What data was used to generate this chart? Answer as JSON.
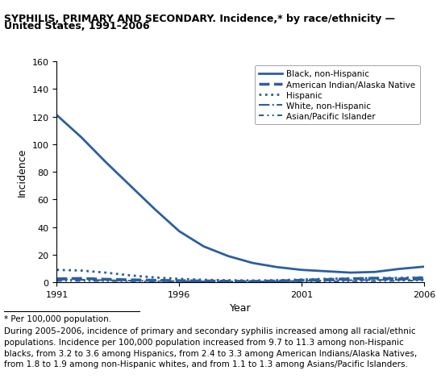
{
  "title_line1": "SYPHILIS, PRIMARY AND SECONDARY. Incidence,* by race/ethnicity —",
  "title_line2": "United States, 1991–2006",
  "xlabel": "Year",
  "ylabel": "Incidence",
  "ylim": [
    0,
    160
  ],
  "yticks": [
    0,
    20,
    40,
    60,
    80,
    100,
    120,
    140,
    160
  ],
  "xticks": [
    1991,
    1996,
    2001,
    2006
  ],
  "footnote_star": "* Per 100,000 population.",
  "footnote_body": "During 2005–2006, incidence of primary and secondary syphilis increased among all racial/ethnic\npopulations. Incidence per 100,000 population increased from 9.7 to 11.3 among non-Hispanic\nblacks, from 3.2 to 3.6 among Hispanics, from 2.4 to 3.3 among American Indians/Alaska Natives,\nfrom 1.8 to 1.9 among non-Hispanic whites, and from 1.1 to 1.3 among Asians/Pacific Islanders.",
  "color": "#2c5f9e",
  "series": [
    {
      "key": "black",
      "label": "Black, non-Hispanic",
      "linestyle": "solid",
      "linewidth": 2.0,
      "years": [
        1991,
        1992,
        1993,
        1994,
        1995,
        1996,
        1997,
        1998,
        1999,
        2000,
        2001,
        2002,
        2003,
        2004,
        2005,
        2006
      ],
      "values": [
        121,
        105,
        87,
        70,
        53,
        37,
        26,
        19,
        14,
        11,
        9,
        8,
        7,
        7.5,
        9.7,
        11.3
      ]
    },
    {
      "key": "aian",
      "label": "American Indian/Alaska Native",
      "linestyle": "dashed",
      "linewidth": 2.5,
      "years": [
        1991,
        1992,
        1993,
        1994,
        1995,
        1996,
        1997,
        1998,
        1999,
        2000,
        2001,
        2002,
        2003,
        2004,
        2005,
        2006
      ],
      "values": [
        2.5,
        2.8,
        2.2,
        1.8,
        1.5,
        1.2,
        1.0,
        0.8,
        0.7,
        1.0,
        1.5,
        2.0,
        2.5,
        3.0,
        2.4,
        3.3
      ]
    },
    {
      "key": "hispanic",
      "label": "Hispanic",
      "linestyle": "dotted",
      "linewidth": 2.0,
      "years": [
        1991,
        1992,
        1993,
        1994,
        1995,
        1996,
        1997,
        1998,
        1999,
        2000,
        2001,
        2002,
        2003,
        2004,
        2005,
        2006
      ],
      "values": [
        9.0,
        8.5,
        7.0,
        5.0,
        3.5,
        2.5,
        1.8,
        1.5,
        1.3,
        1.5,
        2.0,
        2.5,
        2.8,
        3.0,
        3.2,
        3.6
      ]
    },
    {
      "key": "white",
      "label": "White, non-Hispanic",
      "linestyle": "dashdot",
      "linewidth": 1.5,
      "years": [
        1991,
        1992,
        1993,
        1994,
        1995,
        1996,
        1997,
        1998,
        1999,
        2000,
        2001,
        2002,
        2003,
        2004,
        2005,
        2006
      ],
      "values": [
        2.0,
        1.8,
        1.5,
        1.2,
        1.0,
        0.8,
        0.7,
        0.6,
        0.5,
        0.7,
        1.0,
        1.3,
        1.5,
        1.7,
        1.8,
        1.9
      ]
    },
    {
      "key": "api",
      "label": "Asian/Pacific Islander",
      "linestyle": "dashdotdotted",
      "linewidth": 1.5,
      "years": [
        1991,
        1992,
        1993,
        1994,
        1995,
        1996,
        1997,
        1998,
        1999,
        2000,
        2001,
        2002,
        2003,
        2004,
        2005,
        2006
      ],
      "values": [
        1.0,
        1.0,
        0.9,
        0.8,
        0.7,
        0.6,
        0.5,
        0.5,
        0.5,
        0.5,
        0.6,
        0.7,
        0.8,
        0.9,
        1.1,
        1.3
      ]
    }
  ]
}
